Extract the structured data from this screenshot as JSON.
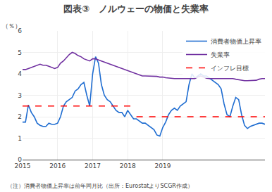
{
  "chart_data": {
    "type": "line",
    "title": "図表③　ノルウェーの物価と失業率",
    "ylabel": "（％）",
    "annotations": [
      "（注）消費者物価上昇率は前年同月比（出所：EurostatよりSCGR作成）"
    ],
    "categories": [
      "2015",
      null,
      null,
      null,
      null,
      null,
      null,
      null,
      null,
      null,
      null,
      null,
      "2016",
      null,
      null,
      null,
      null,
      null,
      null,
      null,
      null,
      null,
      null,
      null,
      "2017",
      null,
      null,
      null,
      null,
      null,
      null,
      null,
      null,
      null,
      null,
      null,
      "2018",
      null,
      null,
      null,
      null,
      null,
      null,
      null,
      null,
      null,
      null,
      null,
      "2019",
      null,
      null,
      null,
      null,
      null,
      null,
      null,
      null,
      null,
      null,
      null,
      null,
      null,
      null,
      null,
      null,
      null,
      null,
      null,
      null,
      null,
      null,
      null,
      null,
      null,
      null,
      null,
      null,
      null,
      null,
      null,
      null,
      null,
      null,
      null
    ],
    "ylim": [
      0,
      6
    ],
    "yticks": [
      0,
      1,
      2,
      3,
      4,
      5,
      6
    ],
    "grid": true,
    "legend": "upper right",
    "series": [
      {
        "name": "消費者物価上昇率",
        "color": "#1f6dd1",
        "line_style": "solid",
        "values": [
          1.75,
          1.75,
          2.55,
          2.2,
          2.0,
          1.7,
          1.6,
          1.55,
          1.55,
          1.7,
          1.65,
          1.65,
          1.7,
          2.0,
          2.5,
          2.7,
          2.8,
          2.9,
          3.2,
          3.3,
          3.5,
          3.6,
          3.0,
          2.5,
          4.0,
          4.8,
          4.5,
          3.5,
          3.0,
          2.8,
          2.7,
          2.5,
          2.3,
          2.2,
          2.2,
          2.0,
          2.3,
          2.1,
          1.9,
          1.9,
          1.8,
          1.7,
          1.7,
          1.6,
          1.5,
          1.4,
          1.15,
          1.1,
          1.5,
          1.75,
          2.1,
          2.3,
          2.4,
          2.3,
          2.5,
          2.6,
          2.7,
          3.5,
          4.0,
          3.8,
          3.9,
          4.0,
          3.9,
          3.9,
          3.8,
          3.7,
          3.6,
          3.5,
          3.3,
          2.6,
          2.1,
          2.0,
          2.5,
          2.9,
          2.8,
          2.1,
          1.6,
          1.45,
          1.55,
          1.6,
          1.65,
          1.7,
          1.7,
          1.65
        ]
      },
      {
        "name": "失業率",
        "color": "#7030a0",
        "line_style": "solid",
        "values": [
          4.2,
          4.2,
          4.25,
          4.3,
          4.35,
          4.4,
          4.45,
          4.4,
          4.4,
          4.35,
          4.3,
          4.25,
          4.3,
          4.5,
          4.6,
          4.75,
          4.9,
          5.0,
          4.95,
          4.85,
          4.8,
          4.7,
          4.65,
          4.6,
          4.7,
          4.7,
          4.65,
          4.6,
          4.55,
          4.5,
          4.45,
          4.4,
          4.35,
          4.3,
          4.25,
          4.2,
          4.15,
          4.1,
          4.05,
          4.0,
          3.95,
          3.9,
          3.9,
          3.9,
          3.9,
          3.9,
          3.88,
          3.85,
          3.85,
          3.82,
          3.8,
          3.8,
          3.78,
          3.78,
          3.78,
          3.78,
          3.78,
          3.78,
          3.78,
          3.78,
          3.85,
          3.9,
          3.85,
          3.8,
          3.78,
          3.78,
          3.78,
          3.78,
          3.78,
          3.78,
          3.78,
          3.78,
          3.78,
          3.75,
          3.72,
          3.7,
          3.68,
          3.68,
          3.68,
          3.7,
          3.7,
          3.75,
          3.78,
          3.78
        ]
      },
      {
        "name": "インフレ目標",
        "color": "#ff0000",
        "line_style": "dashed",
        "segments": [
          {
            "start": 0,
            "end": 39,
            "value": 2.5
          },
          {
            "start": 39,
            "end": 83,
            "value": 2.0
          }
        ]
      }
    ]
  }
}
